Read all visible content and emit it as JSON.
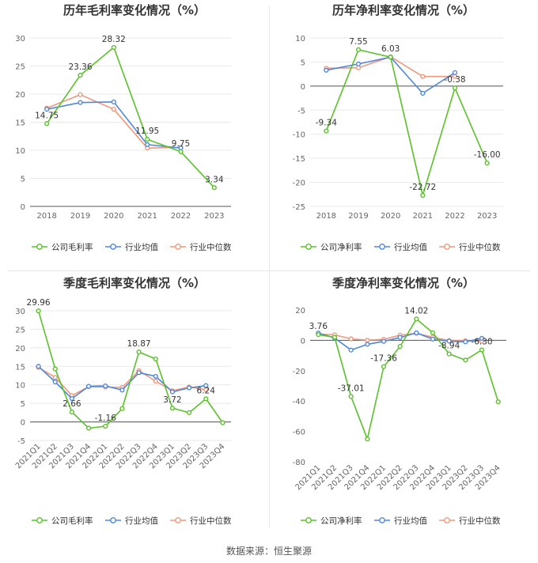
{
  "source": "数据来源：恒生聚源",
  "colors": {
    "company": "#5ac229",
    "industry_avg": "#4f87dd",
    "industry_median": "#f0987a"
  },
  "chart_data": [
    {
      "type": "line",
      "title": "历年毛利率变化情况（%）",
      "categories": [
        "2018",
        "2019",
        "2020",
        "2021",
        "2022",
        "2023"
      ],
      "ylim": [
        0,
        30
      ],
      "yticks": [
        0,
        5,
        10,
        15,
        20,
        25,
        30
      ],
      "grid": true,
      "legend_position": "bottom",
      "series": [
        {
          "name": "公司毛利率",
          "values": [
            14.75,
            23.36,
            28.32,
            11.95,
            9.75,
            3.34
          ]
        },
        {
          "name": "行业均值",
          "values": [
            17.3,
            18.5,
            18.6,
            11.0,
            10.4,
            null
          ]
        },
        {
          "name": "行业中位数",
          "values": [
            17.5,
            19.9,
            17.3,
            10.4,
            10.5,
            null
          ]
        }
      ],
      "data_labels": [
        {
          "index": 0,
          "text": "14.75"
        },
        {
          "index": 1,
          "text": "23.36"
        },
        {
          "index": 2,
          "text": "28.32"
        },
        {
          "index": 3,
          "text": "11.95"
        },
        {
          "index": 4,
          "text": "9.75"
        },
        {
          "index": 5,
          "text": "3.34"
        }
      ]
    },
    {
      "type": "line",
      "title": "历年净利率变化情况（%）",
      "categories": [
        "2018",
        "2019",
        "2020",
        "2021",
        "2022",
        "2023"
      ],
      "ylim": [
        -25,
        10
      ],
      "yticks": [
        -25,
        -20,
        -15,
        -10,
        -5,
        0,
        5,
        10
      ],
      "grid": true,
      "legend_position": "bottom",
      "series": [
        {
          "name": "公司净利率",
          "values": [
            -9.34,
            7.55,
            6.03,
            -22.72,
            -0.38,
            -16.0
          ]
        },
        {
          "name": "行业均值",
          "values": [
            3.3,
            4.6,
            6.0,
            -1.5,
            2.8,
            null
          ]
        },
        {
          "name": "行业中位数",
          "values": [
            3.7,
            3.8,
            6.1,
            2.0,
            2.0,
            null
          ]
        }
      ],
      "data_labels": [
        {
          "index": 0,
          "text": "-9.34"
        },
        {
          "index": 1,
          "text": "7.55"
        },
        {
          "index": 2,
          "text": "6.03"
        },
        {
          "index": 3,
          "text": "-22.72"
        },
        {
          "index": 4,
          "text": "-0.38"
        },
        {
          "index": 5,
          "text": "-16.00"
        }
      ]
    },
    {
      "type": "line",
      "title": "季度毛利率变化情况（%）",
      "categories": [
        "2021Q1",
        "2021Q2",
        "2021Q3",
        "2021Q4",
        "2022Q1",
        "2022Q2",
        "2022Q3",
        "2022Q4",
        "2023Q1",
        "2023Q2",
        "2023Q3",
        "2023Q4"
      ],
      "ylim": [
        -5,
        30
      ],
      "yticks": [
        -5,
        0,
        5,
        10,
        15,
        20,
        25,
        30
      ],
      "grid": true,
      "legend_position": "bottom",
      "series": [
        {
          "name": "公司毛利率",
          "values": [
            29.96,
            14.3,
            2.66,
            -1.7,
            -1.16,
            3.6,
            18.87,
            17.0,
            3.72,
            2.5,
            6.24,
            -0.2
          ]
        },
        {
          "name": "行业均值",
          "values": [
            15.0,
            10.8,
            6.3,
            9.6,
            9.7,
            8.6,
            13.3,
            12.3,
            8.1,
            9.2,
            9.8,
            null
          ]
        },
        {
          "name": "行业中位数",
          "values": [
            14.7,
            12.0,
            7.1,
            9.5,
            9.4,
            9.3,
            13.8,
            11.0,
            8.4,
            9.4,
            8.7,
            null
          ]
        }
      ],
      "data_labels": [
        {
          "index": 0,
          "text": "29.96"
        },
        {
          "index": 2,
          "text": "2.66"
        },
        {
          "index": 4,
          "text": "-1.16"
        },
        {
          "index": 6,
          "text": "18.87"
        },
        {
          "index": 8,
          "text": "3.72"
        },
        {
          "index": 10,
          "text": "6.24"
        }
      ]
    },
    {
      "type": "line",
      "title": "季度净利率变化情况（%）",
      "categories": [
        "2021Q1",
        "2021Q2",
        "2021Q3",
        "2021Q4",
        "2022Q1",
        "2022Q2",
        "2022Q3",
        "2022Q4",
        "2023Q1",
        "2023Q2",
        "2023Q3",
        "2023Q4"
      ],
      "ylim": [
        -80,
        20
      ],
      "yticks": [
        -80,
        -60,
        -40,
        -20,
        0,
        20
      ],
      "grid": false,
      "legend_position": "bottom",
      "series": [
        {
          "name": "公司净利率",
          "values": [
            3.76,
            2.0,
            -37.01,
            -65.0,
            -17.36,
            -4.0,
            14.02,
            5.0,
            -8.94,
            -13.0,
            -6.3,
            -40.5
          ]
        },
        {
          "name": "行业均值",
          "values": [
            4.8,
            1.5,
            -6.4,
            -2.6,
            -0.7,
            1.9,
            4.9,
            0.8,
            -0.5,
            -1.0,
            1.3,
            null
          ]
        },
        {
          "name": "行业中位数",
          "values": [
            4.1,
            3.6,
            1.0,
            0.1,
            0.6,
            3.4,
            4.6,
            2.1,
            -0.2,
            -0.3,
            -0.5,
            null
          ]
        }
      ],
      "data_labels": [
        {
          "index": 0,
          "text": "3.76"
        },
        {
          "index": 2,
          "text": "-37.01"
        },
        {
          "index": 4,
          "text": "-17.36"
        },
        {
          "index": 6,
          "text": "14.02"
        },
        {
          "index": 8,
          "text": "-8.94"
        },
        {
          "index": 10,
          "text": "-6.30"
        }
      ]
    }
  ]
}
